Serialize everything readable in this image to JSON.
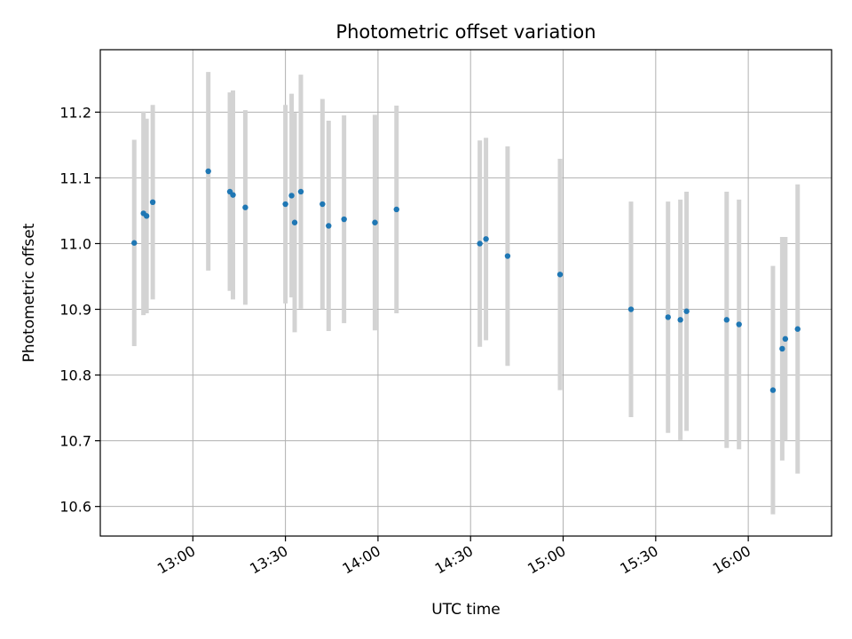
{
  "chart_data": {
    "type": "scatter",
    "title": "Photometric offset variation",
    "xlabel": "UTC time",
    "ylabel": "Photometric offset",
    "grid": true,
    "x_axis": "time",
    "xlim": [
      "12:30",
      "16:27"
    ],
    "ylim": [
      10.555,
      11.295
    ],
    "x_ticks": [
      "13:00",
      "13:30",
      "14:00",
      "14:30",
      "15:00",
      "15:30",
      "16:00"
    ],
    "y_ticks": [
      "10.6",
      "10.7",
      "10.8",
      "10.9",
      "11.0",
      "11.1",
      "11.2"
    ],
    "colors": {
      "point": "#1f77b4",
      "errorbar": "#d3d3d3",
      "grid": "#b0b0b0"
    },
    "series": [
      {
        "points": [
          {
            "x": "12:41",
            "y": 11.001,
            "err": 0.157
          },
          {
            "x": "12:44",
            "y": 11.046,
            "err": 0.155
          },
          {
            "x": "12:45",
            "y": 11.042,
            "err": 0.148
          },
          {
            "x": "12:47",
            "y": 11.063,
            "err": 0.148
          },
          {
            "x": "13:05",
            "y": 11.11,
            "err": 0.151
          },
          {
            "x": "13:12",
            "y": 11.079,
            "err": 0.151
          },
          {
            "x": "13:13",
            "y": 11.074,
            "err": 0.159
          },
          {
            "x": "13:17",
            "y": 11.055,
            "err": 0.148
          },
          {
            "x": "13:30",
            "y": 11.06,
            "err": 0.151
          },
          {
            "x": "13:32",
            "y": 11.073,
            "err": 0.155
          },
          {
            "x": "13:33",
            "y": 11.032,
            "err": 0.167
          },
          {
            "x": "13:35",
            "y": 11.079,
            "err": 0.178
          },
          {
            "x": "13:42",
            "y": 11.06,
            "err": 0.16
          },
          {
            "x": "13:44",
            "y": 11.027,
            "err": 0.16
          },
          {
            "x": "13:49",
            "y": 11.037,
            "err": 0.158
          },
          {
            "x": "13:59",
            "y": 11.032,
            "err": 0.164
          },
          {
            "x": "14:06",
            "y": 11.052,
            "err": 0.158
          },
          {
            "x": "14:33",
            "y": 11.0,
            "err": 0.157
          },
          {
            "x": "14:35",
            "y": 11.007,
            "err": 0.154
          },
          {
            "x": "14:42",
            "y": 10.981,
            "err": 0.167
          },
          {
            "x": "14:59",
            "y": 10.953,
            "err": 0.176
          },
          {
            "x": "15:22",
            "y": 10.9,
            "err": 0.164
          },
          {
            "x": "15:34",
            "y": 10.888,
            "err": 0.176
          },
          {
            "x": "15:38",
            "y": 10.884,
            "err": 0.183
          },
          {
            "x": "15:40",
            "y": 10.897,
            "err": 0.182
          },
          {
            "x": "15:53",
            "y": 10.884,
            "err": 0.195
          },
          {
            "x": "15:57",
            "y": 10.877,
            "err": 0.19
          },
          {
            "x": "16:08",
            "y": 10.777,
            "err": 0.189
          },
          {
            "x": "16:11",
            "y": 10.84,
            "err": 0.17
          },
          {
            "x": "16:12",
            "y": 10.855,
            "err": 0.155
          },
          {
            "x": "16:16",
            "y": 10.87,
            "err": 0.22
          }
        ]
      }
    ]
  }
}
